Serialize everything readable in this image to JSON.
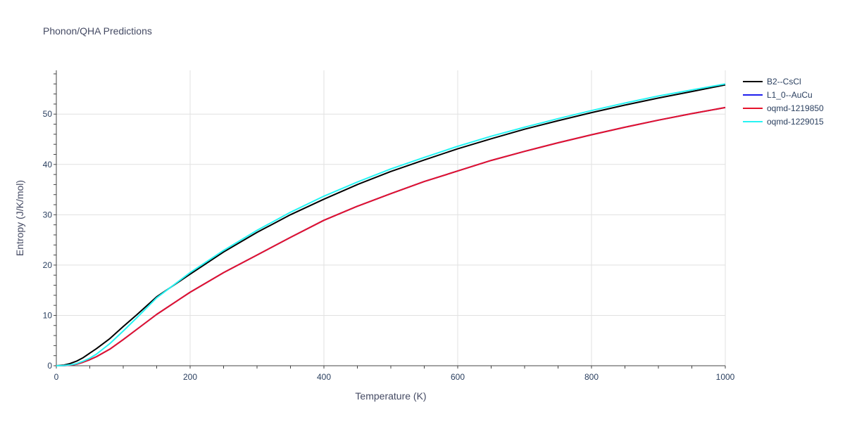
{
  "chart_data": {
    "type": "line",
    "title": "Phonon/QHA Predictions",
    "xlabel": "Temperature (K)",
    "ylabel": "Entropy (J/K/mol)",
    "xlim": [
      0,
      1000
    ],
    "ylim": [
      0,
      58.7
    ],
    "xticks": [
      0,
      200,
      400,
      600,
      800,
      1000
    ],
    "yticks": [
      0,
      10,
      20,
      30,
      40,
      50
    ],
    "grid": true,
    "legend_position": "top-right",
    "series": [
      {
        "name": "B2--CsCl",
        "color": "#000000",
        "x": [
          0,
          10,
          20,
          30,
          40,
          50,
          60,
          80,
          100,
          120,
          150,
          200,
          250,
          300,
          350,
          400,
          450,
          500,
          550,
          600,
          650,
          700,
          750,
          800,
          850,
          900,
          950,
          1000
        ],
        "y": [
          0,
          0.1,
          0.4,
          0.9,
          1.6,
          2.5,
          3.4,
          5.4,
          7.8,
          10.1,
          13.7,
          18.2,
          22.6,
          26.5,
          30.0,
          33.1,
          36.0,
          38.6,
          40.9,
          43.1,
          45.1,
          47.0,
          48.7,
          50.3,
          51.8,
          53.2,
          54.5,
          55.8
        ]
      },
      {
        "name": "L1_0--AuCu",
        "color": "#1f1fee",
        "x": [
          0,
          10,
          20,
          30,
          40,
          50,
          60,
          80,
          100,
          120,
          150,
          200,
          250,
          300,
          350,
          400,
          450,
          500,
          550,
          600,
          650,
          700,
          750,
          800,
          850,
          900,
          950,
          1000
        ],
        "y": [
          0,
          0.02,
          0.1,
          0.3,
          0.7,
          1.2,
          1.8,
          3.3,
          5.2,
          7.2,
          10.2,
          14.6,
          18.5,
          22.0,
          25.5,
          28.9,
          31.7,
          34.2,
          36.6,
          38.7,
          40.8,
          42.6,
          44.3,
          45.9,
          47.4,
          48.8,
          50.1,
          51.3
        ]
      },
      {
        "name": "oqmd-1219850",
        "color": "#e5132b",
        "x": [
          0,
          10,
          20,
          30,
          40,
          50,
          60,
          80,
          100,
          120,
          150,
          200,
          250,
          300,
          350,
          400,
          450,
          500,
          550,
          600,
          650,
          700,
          750,
          800,
          850,
          900,
          950,
          1000
        ],
        "y": [
          0,
          0.02,
          0.1,
          0.3,
          0.7,
          1.2,
          1.8,
          3.3,
          5.2,
          7.2,
          10.2,
          14.6,
          18.5,
          22.0,
          25.5,
          28.9,
          31.7,
          34.2,
          36.6,
          38.7,
          40.8,
          42.6,
          44.3,
          45.9,
          47.4,
          48.8,
          50.1,
          51.3
        ]
      },
      {
        "name": "oqmd-1229015",
        "color": "#27f3f3",
        "x": [
          0,
          10,
          20,
          30,
          40,
          50,
          60,
          80,
          100,
          120,
          150,
          200,
          250,
          300,
          350,
          400,
          450,
          500,
          550,
          600,
          650,
          700,
          750,
          800,
          850,
          900,
          950,
          1000
        ],
        "y": [
          0,
          0.03,
          0.15,
          0.4,
          0.9,
          1.5,
          2.3,
          4.4,
          6.9,
          9.5,
          13.5,
          18.5,
          22.9,
          26.9,
          30.5,
          33.7,
          36.5,
          39.1,
          41.4,
          43.6,
          45.6,
          47.4,
          49.1,
          50.7,
          52.2,
          53.6,
          54.8,
          56.0
        ]
      }
    ]
  }
}
